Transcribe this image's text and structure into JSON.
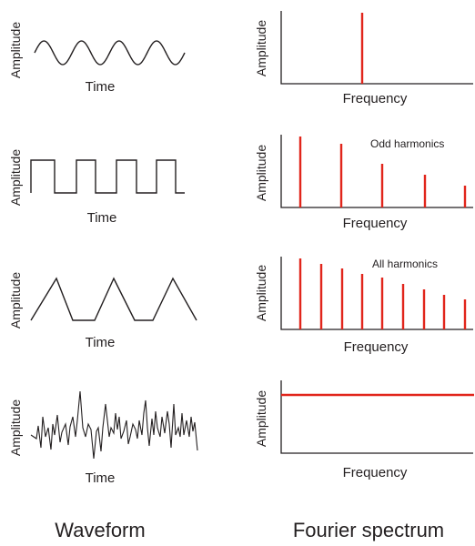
{
  "rows": [
    {
      "waveform": {
        "type": "sine",
        "ylabel": "Amplitude",
        "xlabel": "Time"
      },
      "spectrum": {
        "type": "single",
        "ylabel": "Amplitude",
        "xlabel": "Frequency",
        "annotation": ""
      }
    },
    {
      "waveform": {
        "type": "square",
        "ylabel": "Amplitude",
        "xlabel": "Time"
      },
      "spectrum": {
        "type": "odd",
        "ylabel": "Amplitude",
        "xlabel": "Frequency",
        "annotation": "Odd harmonics"
      }
    },
    {
      "waveform": {
        "type": "triangle",
        "ylabel": "Amplitude",
        "xlabel": "Time"
      },
      "spectrum": {
        "type": "all",
        "ylabel": "Amplitude",
        "xlabel": "Frequency",
        "annotation": "All harmonics"
      }
    },
    {
      "waveform": {
        "type": "noise",
        "ylabel": "Amplitude",
        "xlabel": "Time"
      },
      "spectrum": {
        "type": "flat",
        "ylabel": "Amplitude",
        "xlabel": "Frequency",
        "annotation": ""
      }
    }
  ],
  "footer": {
    "left": "Waveform",
    "right": "Fourier spectrum"
  },
  "colors": {
    "spectrum_line": "#e1251b",
    "ink": "#231f20"
  }
}
